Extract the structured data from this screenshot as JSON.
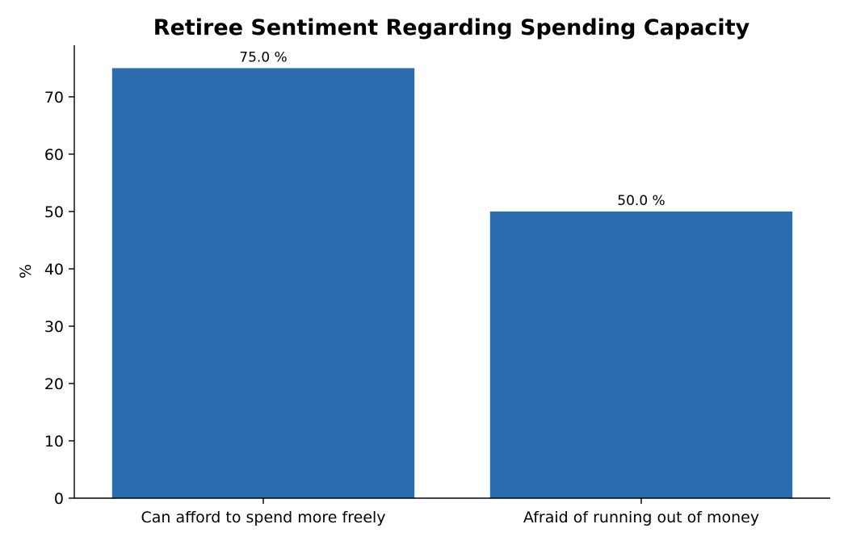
{
  "chart_data": {
    "type": "bar",
    "title": "Retiree Sentiment Regarding Spending Capacity",
    "xlabel": "",
    "ylabel": "%",
    "categories": [
      "Can afford to spend more freely",
      "Afraid of running out of money"
    ],
    "values": [
      75.0,
      50.0
    ],
    "value_labels": [
      "75.0 %",
      "50.0 %"
    ],
    "ylim": [
      0,
      79
    ],
    "yticks": [
      0,
      10,
      20,
      30,
      40,
      50,
      60,
      70
    ],
    "grid": false,
    "legend": "none",
    "bar_color": "#2b6cb0"
  }
}
